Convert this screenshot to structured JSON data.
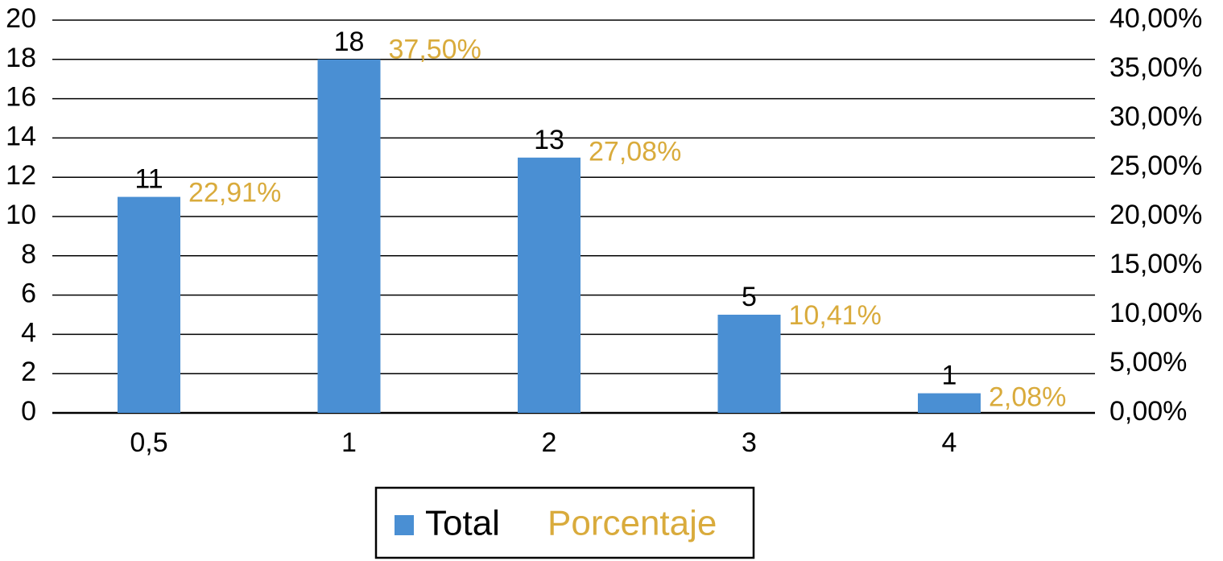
{
  "chart_data": {
    "type": "bar",
    "categories": [
      "0,5",
      "1",
      "2",
      "3",
      "4"
    ],
    "series": [
      {
        "name": "Total",
        "color": "#4a8fd3",
        "values": [
          11,
          18,
          13,
          5,
          1
        ]
      },
      {
        "name": "Porcentaje",
        "color": "#d9ab3c",
        "axis": "y2",
        "values": [
          22.91,
          37.5,
          27.08,
          10.41,
          2.08
        ],
        "value_labels": [
          "22,91%",
          "37,50%",
          "27,08%",
          "10,41%",
          "2,08%"
        ]
      }
    ],
    "ylim": [
      0,
      20
    ],
    "yticks": [
      0,
      2,
      4,
      6,
      8,
      10,
      12,
      14,
      16,
      18,
      20
    ],
    "y2lim": [
      0,
      40
    ],
    "y2ticks": [
      {
        "value": 0,
        "label": "0,00%"
      },
      {
        "value": 5,
        "label": "5,00%"
      },
      {
        "value": 10,
        "label": "10,00%"
      },
      {
        "value": 15,
        "label": "15,00%"
      },
      {
        "value": 20,
        "label": "20,00%"
      },
      {
        "value": 25,
        "label": "25,00%"
      },
      {
        "value": 30,
        "label": "30,00%"
      },
      {
        "value": 35,
        "label": "35,00%"
      },
      {
        "value": 40,
        "label": "40,00%"
      }
    ],
    "grid": true,
    "legend": "bottom"
  }
}
